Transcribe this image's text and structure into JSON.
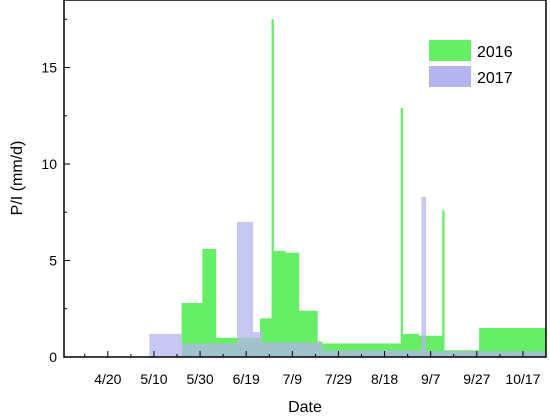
{
  "chart_data": {
    "type": "area",
    "xlabel": "Date",
    "ylabel": "P/I (mm/d)",
    "x_tick_labels": [
      "4/20",
      "5/10",
      "5/30",
      "6/19",
      "7/9",
      "7/29",
      "8/18",
      "9/7",
      "9/27",
      "10/17"
    ],
    "y_tick_labels": [
      "0",
      "5",
      "10",
      "15"
    ],
    "xlim": [
      "4/1",
      "10/27"
    ],
    "ylim": [
      0,
      18.5
    ],
    "grid": false,
    "legend_position": "top-right",
    "series": [
      {
        "name": "2016",
        "color": "#66ee66",
        "x": [
          "5/22",
          "5/22",
          "5/28",
          "5/28",
          "5/31",
          "5/31",
          "6/6",
          "6/6",
          "6/15",
          "6/15",
          "6/25",
          "6/25",
          "6/30",
          "6/30",
          "7/1",
          "7/1",
          "7/6",
          "7/6",
          "7/12",
          "7/12",
          "7/20",
          "7/20",
          "7/22",
          "7/22",
          "7/27",
          "7/27",
          "8/25",
          "8/25",
          "8/26",
          "8/26",
          "8/28",
          "8/28",
          "9/2",
          "9/2",
          "9/12",
          "9/12",
          "9/13",
          "9/13",
          "9/28",
          "9/28",
          "10/27",
          "10/27"
        ],
        "y": [
          0,
          2.8,
          2.8,
          2.8,
          2.8,
          5.6,
          5.6,
          1.0,
          1.0,
          1.0,
          1.0,
          2.0,
          2.0,
          17.5,
          17.5,
          5.5,
          5.5,
          5.4,
          5.4,
          2.4,
          2.4,
          0.8,
          0.8,
          0.7,
          0.7,
          0.7,
          0.7,
          12.9,
          12.9,
          1.2,
          1.2,
          1.2,
          1.2,
          1.1,
          1.1,
          7.6,
          7.6,
          0.35,
          0.35,
          1.5,
          1.5,
          0
        ]
      },
      {
        "name": "2017",
        "color": "#b4b4ee",
        "x": [
          "5/8",
          "5/8",
          "5/22",
          "5/22",
          "6/15",
          "6/15",
          "6/22",
          "6/22",
          "6/26",
          "6/26",
          "7/22",
          "7/22",
          "9/3",
          "9/3",
          "9/5",
          "9/5",
          "10/27",
          "10/27"
        ],
        "y": [
          0,
          1.2,
          1.2,
          0.7,
          0.7,
          7.0,
          7.0,
          1.3,
          1.3,
          0.75,
          0.75,
          0.35,
          0.35,
          8.3,
          8.3,
          0.3,
          0.3,
          0
        ]
      }
    ]
  }
}
